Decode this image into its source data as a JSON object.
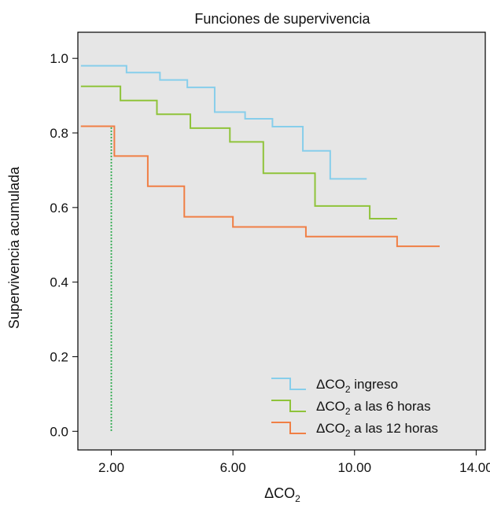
{
  "chart_data": {
    "type": "line",
    "step": true,
    "title": "Funciones de supervivencia",
    "xlabel_base": "ΔCO",
    "xlabel_sub": "2",
    "ylabel": "Supervivencia acumulada",
    "xlim": [
      0.9,
      14.3
    ],
    "ylim": [
      -0.05,
      1.07
    ],
    "x_ticks": [
      2,
      6,
      10,
      14
    ],
    "x_tick_labels": [
      "2.00",
      "6.00",
      "10.00",
      "14.00"
    ],
    "y_ticks": [
      0.0,
      0.2,
      0.4,
      0.6,
      0.8,
      1.0
    ],
    "y_tick_labels": [
      "0.0",
      "0.2",
      "0.4",
      "0.6",
      "0.8",
      "1.0"
    ],
    "grid": false,
    "background_color": "#e6e6e6",
    "legend_position": "bottom-right",
    "series": [
      {
        "label_base": "ΔCO",
        "label_sub": "2",
        "label_rest": " ingreso",
        "color": "#87ceeb",
        "x": [
          1.0,
          2.5,
          3.6,
          4.5,
          5.4,
          6.4,
          7.3,
          8.3,
          9.2,
          10.4
        ],
        "y": [
          0.98,
          0.962,
          0.942,
          0.922,
          0.856,
          0.838,
          0.817,
          0.752,
          0.677,
          0.677
        ]
      },
      {
        "label_base": "ΔCO",
        "label_sub": "2",
        "label_rest": " a las 6 horas",
        "color": "#8fc33a",
        "x": [
          1.0,
          2.3,
          3.5,
          4.6,
          5.9,
          7.0,
          8.7,
          10.5,
          11.4
        ],
        "y": [
          0.925,
          0.887,
          0.85,
          0.813,
          0.776,
          0.692,
          0.604,
          0.57,
          0.57
        ]
      },
      {
        "label_base": "ΔCO",
        "label_sub": "2",
        "label_rest": " a las 12 horas",
        "color": "#f07f45",
        "x": [
          1.0,
          2.1,
          3.2,
          4.4,
          6.0,
          8.4,
          11.4,
          12.8
        ],
        "y": [
          0.818,
          0.738,
          0.657,
          0.575,
          0.548,
          0.522,
          0.496,
          0.496
        ]
      }
    ],
    "reference_line": {
      "color": "#2aa84a",
      "x": 2.0,
      "y_top": 0.818,
      "x_start": 1.0
    }
  }
}
